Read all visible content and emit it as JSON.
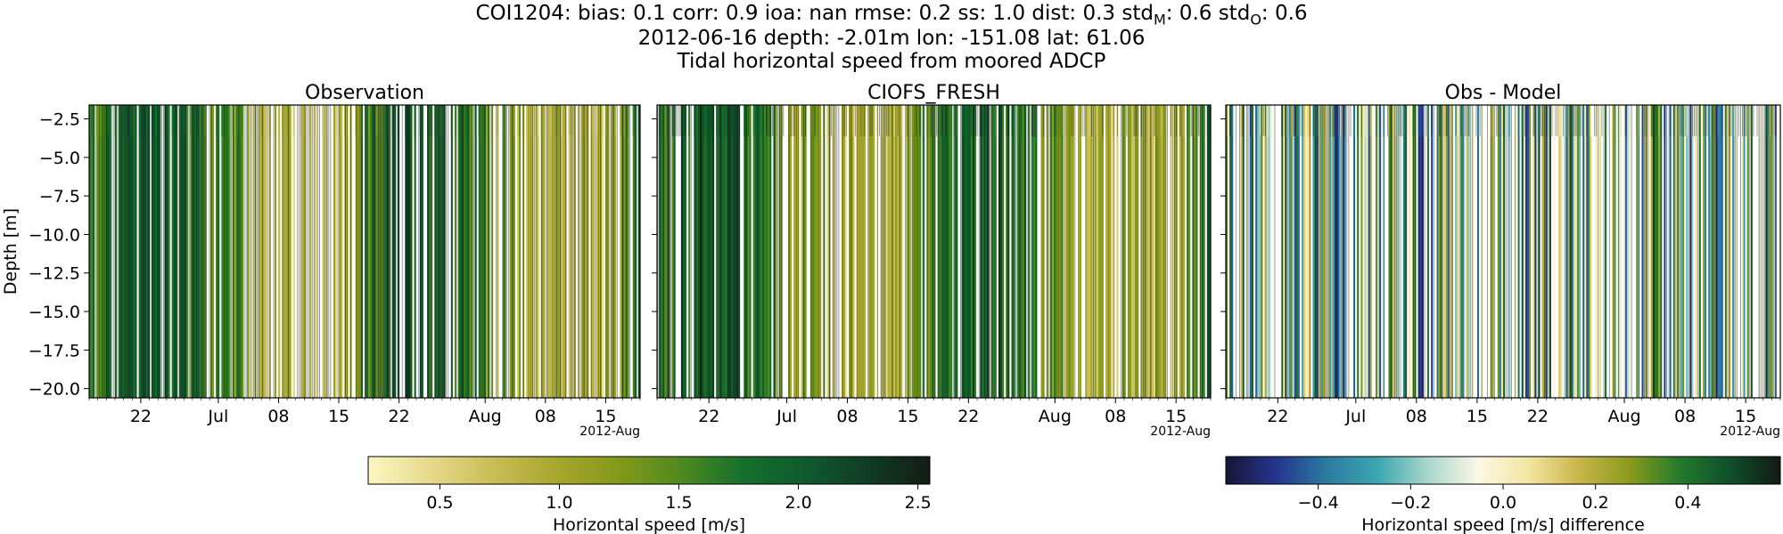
{
  "title": {
    "line1": "COI1204: bias: 0.1  corr: 0.9  ioa: nan  rmse: 0.2  ss: 1.0  dist: 0.3  std",
    "line1_sub_m": "M",
    "line1_mid": ": 0.6  std",
    "line1_sub_o": "O",
    "line1_end": ": 0.6",
    "line2": "2012-06-16 depth: -2.01m lon: -151.08 lat: 61.06",
    "line3": "Tidal horizontal speed from moored ADCP"
  },
  "colors": {
    "speed_cmap": [
      "#fcf7c4",
      "#e6d98b",
      "#c9bd55",
      "#a8a72e",
      "#84991a",
      "#4f8a1f",
      "#15702c",
      "#0f5a2d",
      "#103c25",
      "#121d14"
    ],
    "diff_cmap": [
      "#171535",
      "#24358f",
      "#2c7ba0",
      "#3aa6b0",
      "#a9d6cc",
      "#fbf8e6",
      "#f4e6a1",
      "#c9b54b",
      "#8c9b1c",
      "#237a2d",
      "#0f4f2b",
      "#131a12"
    ]
  },
  "chart_data": [
    {
      "type": "heatmap",
      "title": "Observation",
      "ylabel": "Depth [m]",
      "xlabel": "",
      "x_range": [
        "2012-06-16",
        "2012-08-19"
      ],
      "ylim": [
        -20.6,
        -1.6
      ],
      "y_ticks": [
        -2.5,
        -5.0,
        -7.5,
        -10.0,
        -12.5,
        -15.0,
        -17.5,
        -20.0
      ],
      "x_ticks": [
        {
          "date": "2012-06-22",
          "label": "22"
        },
        {
          "date": "2012-07-01",
          "label": "Jul"
        },
        {
          "date": "2012-07-08",
          "label": "08"
        },
        {
          "date": "2012-07-15",
          "label": "15"
        },
        {
          "date": "2012-07-22",
          "label": "22"
        },
        {
          "date": "2012-08-01",
          "label": "Aug"
        },
        {
          "date": "2012-08-08",
          "label": "08"
        },
        {
          "date": "2012-08-15",
          "label": "15"
        }
      ],
      "x_offset_label": "2012-Aug",
      "colorbar": "speed",
      "data_range": [
        0.2,
        2.5
      ]
    },
    {
      "type": "heatmap",
      "title": "CIOFS_FRESH",
      "ylabel": "",
      "xlabel": "",
      "x_range": [
        "2012-06-16",
        "2012-08-19"
      ],
      "ylim": [
        -20.6,
        -1.6
      ],
      "x_ticks": [
        {
          "date": "2012-06-22",
          "label": "22"
        },
        {
          "date": "2012-07-01",
          "label": "Jul"
        },
        {
          "date": "2012-07-08",
          "label": "08"
        },
        {
          "date": "2012-07-15",
          "label": "15"
        },
        {
          "date": "2012-07-22",
          "label": "22"
        },
        {
          "date": "2012-08-01",
          "label": "Aug"
        },
        {
          "date": "2012-08-08",
          "label": "08"
        },
        {
          "date": "2012-08-15",
          "label": "15"
        }
      ],
      "x_offset_label": "2012-Aug",
      "colorbar": "speed",
      "data_range": [
        0.2,
        2.5
      ]
    },
    {
      "type": "heatmap",
      "title": "Obs - Model",
      "ylabel": "",
      "xlabel": "",
      "x_range": [
        "2012-06-16",
        "2012-08-19"
      ],
      "ylim": [
        -20.6,
        -1.6
      ],
      "x_ticks": [
        {
          "date": "2012-06-22",
          "label": "22"
        },
        {
          "date": "2012-07-01",
          "label": "Jul"
        },
        {
          "date": "2012-07-08",
          "label": "08"
        },
        {
          "date": "2012-07-15",
          "label": "15"
        },
        {
          "date": "2012-07-22",
          "label": "22"
        },
        {
          "date": "2012-08-01",
          "label": "Aug"
        },
        {
          "date": "2012-08-08",
          "label": "08"
        },
        {
          "date": "2012-08-15",
          "label": "15"
        }
      ],
      "x_offset_label": "2012-Aug",
      "colorbar": "diff",
      "data_range": [
        -0.6,
        0.6
      ]
    }
  ],
  "colorbars": [
    {
      "id": "speed",
      "label": "Horizontal speed [m/s]",
      "vmin": 0.2,
      "vmax": 2.55,
      "ticks": [
        {
          "v": 0.5,
          "label": "0.5"
        },
        {
          "v": 1.0,
          "label": "1.0"
        },
        {
          "v": 1.5,
          "label": "1.5"
        },
        {
          "v": 2.0,
          "label": "2.0"
        },
        {
          "v": 2.5,
          "label": "2.5"
        }
      ]
    },
    {
      "id": "diff",
      "label": "Horizontal speed [m/s] difference",
      "vmin": -0.6,
      "vmax": 0.6,
      "ticks": [
        {
          "v": -0.4,
          "label": "−0.4"
        },
        {
          "v": -0.2,
          "label": "−0.2"
        },
        {
          "v": 0.0,
          "label": "0.0"
        },
        {
          "v": 0.2,
          "label": "0.2"
        },
        {
          "v": 0.4,
          "label": "0.4"
        }
      ]
    }
  ]
}
